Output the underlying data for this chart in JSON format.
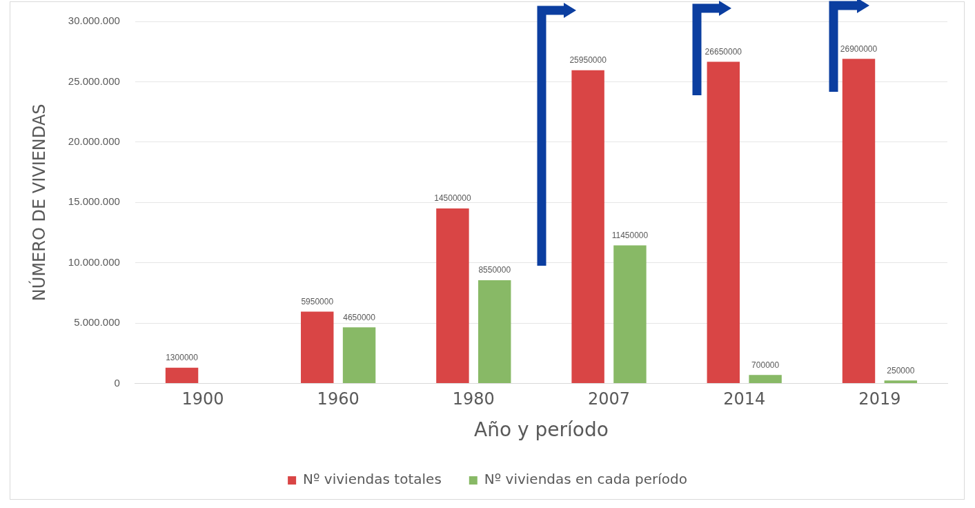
{
  "chart_data": {
    "type": "bar",
    "xlabel": "Año y período",
    "ylabel": "NÚMERO DE VIVIENDAS",
    "categories": [
      "1900",
      "1960",
      "1980",
      "2007",
      "2014",
      "2019"
    ],
    "series": [
      {
        "name": "Nº viviendas totales",
        "color": "#d94545",
        "values": [
          1300000,
          5950000,
          14500000,
          25950000,
          26650000,
          26900000
        ]
      },
      {
        "name": "Nº viviendas en cada período",
        "color": "#88b966",
        "values": [
          null,
          4650000,
          8550000,
          11450000,
          700000,
          250000
        ]
      }
    ],
    "ylim": [
      0,
      30000000
    ],
    "yticks": [
      {
        "value": 0,
        "label": "0"
      },
      {
        "value": 5000000,
        "label": "5.000.000"
      },
      {
        "value": 10000000,
        "label": "10.000.000"
      },
      {
        "value": 15000000,
        "label": "15.000.000"
      },
      {
        "value": 20000000,
        "label": "20.000.000"
      },
      {
        "value": 25000000,
        "label": "25.000.000"
      },
      {
        "value": 30000000,
        "label": "30.000.000"
      }
    ],
    "grid": "y",
    "legend": "bottom",
    "data_labels": true
  }
}
